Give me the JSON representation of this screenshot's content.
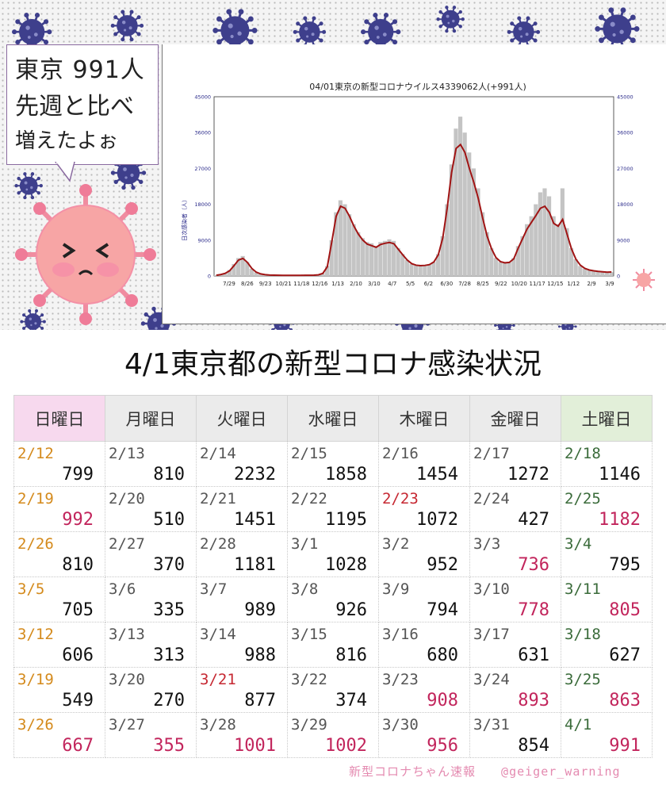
{
  "bubble": {
    "line1": "東京 991人",
    "line2": "先週と比べ",
    "line3": "増えたよぉ"
  },
  "colors": {
    "accent_red": "#c2255c",
    "sunday_date": "#d48a1c",
    "saturday_date": "#3a6b3a",
    "holiday_date": "#c62832",
    "bar": "#c4c4c4",
    "line": "#a01414",
    "virus": "#3e3f8c",
    "mascot": "#f7a5a5"
  },
  "icons": {
    "mascot": "crying-virus-mascot-icon",
    "virus": "virus-icon"
  },
  "chart_data": {
    "type": "bar",
    "title": "04/01東京の新型コロナウイルス4339062人(+991人)",
    "ylabel": "日次感染者（人）",
    "ylim": [
      0,
      45000
    ],
    "yticks": [
      "45000",
      "36000",
      "27000",
      "18000",
      "9000",
      "0"
    ],
    "x_tick_labels": [
      "7/29",
      "8/26",
      "9/23",
      "10/21",
      "11/18",
      "12/16",
      "1/13",
      "2/10",
      "3/10",
      "4/7",
      "5/5",
      "6/2",
      "6/30",
      "7/28",
      "8/25",
      "9/22",
      "10/20",
      "11/17",
      "12/15",
      "1/12",
      "2/9",
      "3/9"
    ],
    "series": [
      {
        "name": "日次感染者数",
        "kind": "bar",
        "values": [
          200,
          400,
          700,
          1500,
          3000,
          4500,
          5000,
          3500,
          1800,
          900,
          500,
          300,
          200,
          200,
          180,
          150,
          150,
          150,
          160,
          160,
          170,
          190,
          220,
          300,
          700,
          2500,
          9000,
          16000,
          19000,
          18000,
          15500,
          13000,
          11000,
          9500,
          8500,
          8200,
          7500,
          8500,
          8800,
          9200,
          8800,
          7000,
          5500,
          4000,
          3000,
          2600,
          2500,
          2600,
          2800,
          3500,
          5500,
          10000,
          18000,
          28000,
          37000,
          40000,
          36000,
          31000,
          27000,
          22000,
          16000,
          11000,
          7000,
          4500,
          3500,
          3200,
          3400,
          4500,
          7500,
          10000,
          13000,
          15000,
          18000,
          21000,
          22000,
          20000,
          15000,
          13000,
          22000,
          12000,
          7000,
          4200,
          2500,
          1800,
          1400,
          1200,
          1100,
          1000,
          900,
          950
        ]
      },
      {
        "name": "移動平均",
        "kind": "line",
        "values": [
          180,
          350,
          650,
          1300,
          2600,
          4000,
          4400,
          3400,
          1900,
          950,
          520,
          330,
          230,
          200,
          180,
          160,
          155,
          150,
          155,
          160,
          165,
          180,
          210,
          280,
          650,
          2300,
          8500,
          15000,
          17500,
          17000,
          15000,
          12500,
          10500,
          9000,
          8000,
          7600,
          7200,
          7900,
          8200,
          8400,
          8100,
          6700,
          5300,
          4000,
          3100,
          2700,
          2600,
          2650,
          2850,
          3500,
          5300,
          9500,
          17000,
          26000,
          32000,
          33000,
          31000,
          27000,
          23500,
          19500,
          14500,
          10000,
          6800,
          4600,
          3600,
          3300,
          3400,
          4300,
          7000,
          9400,
          11800,
          13500,
          15200,
          17000,
          17500,
          16000,
          13200,
          12500,
          14200,
          10500,
          6800,
          4200,
          2700,
          1900,
          1500,
          1300,
          1150,
          1050,
          950,
          990
        ]
      }
    ]
  },
  "table": {
    "title": "4/1東京都の新型コロナ感染状況",
    "headers": [
      "日曜日",
      "月曜日",
      "火曜日",
      "水曜日",
      "木曜日",
      "金曜日",
      "土曜日"
    ],
    "rows": [
      [
        {
          "date": "2/12",
          "value": "799",
          "date_style": "sun",
          "value_style": "normal"
        },
        {
          "date": "2/13",
          "value": "810",
          "date_style": "normal",
          "value_style": "normal"
        },
        {
          "date": "2/14",
          "value": "2232",
          "date_style": "normal",
          "value_style": "normal"
        },
        {
          "date": "2/15",
          "value": "1858",
          "date_style": "normal",
          "value_style": "normal"
        },
        {
          "date": "2/16",
          "value": "1454",
          "date_style": "normal",
          "value_style": "normal"
        },
        {
          "date": "2/17",
          "value": "1272",
          "date_style": "normal",
          "value_style": "normal"
        },
        {
          "date": "2/18",
          "value": "1146",
          "date_style": "sat",
          "value_style": "normal"
        }
      ],
      [
        {
          "date": "2/19",
          "value": "992",
          "date_style": "sun",
          "value_style": "red"
        },
        {
          "date": "2/20",
          "value": "510",
          "date_style": "normal",
          "value_style": "normal"
        },
        {
          "date": "2/21",
          "value": "1451",
          "date_style": "normal",
          "value_style": "normal"
        },
        {
          "date": "2/22",
          "value": "1195",
          "date_style": "normal",
          "value_style": "normal"
        },
        {
          "date": "2/23",
          "value": "1072",
          "date_style": "hol",
          "value_style": "normal"
        },
        {
          "date": "2/24",
          "value": "427",
          "date_style": "normal",
          "value_style": "normal"
        },
        {
          "date": "2/25",
          "value": "1182",
          "date_style": "sat",
          "value_style": "red"
        }
      ],
      [
        {
          "date": "2/26",
          "value": "810",
          "date_style": "sun",
          "value_style": "normal"
        },
        {
          "date": "2/27",
          "value": "370",
          "date_style": "normal",
          "value_style": "normal"
        },
        {
          "date": "2/28",
          "value": "1181",
          "date_style": "normal",
          "value_style": "normal"
        },
        {
          "date": "3/1",
          "value": "1028",
          "date_style": "normal",
          "value_style": "normal"
        },
        {
          "date": "3/2",
          "value": "952",
          "date_style": "normal",
          "value_style": "normal"
        },
        {
          "date": "3/3",
          "value": "736",
          "date_style": "normal",
          "value_style": "red"
        },
        {
          "date": "3/4",
          "value": "795",
          "date_style": "sat",
          "value_style": "normal"
        }
      ],
      [
        {
          "date": "3/5",
          "value": "705",
          "date_style": "sun",
          "value_style": "normal"
        },
        {
          "date": "3/6",
          "value": "335",
          "date_style": "normal",
          "value_style": "normal"
        },
        {
          "date": "3/7",
          "value": "989",
          "date_style": "normal",
          "value_style": "normal"
        },
        {
          "date": "3/8",
          "value": "926",
          "date_style": "normal",
          "value_style": "normal"
        },
        {
          "date": "3/9",
          "value": "794",
          "date_style": "normal",
          "value_style": "normal"
        },
        {
          "date": "3/10",
          "value": "778",
          "date_style": "normal",
          "value_style": "red"
        },
        {
          "date": "3/11",
          "value": "805",
          "date_style": "sat",
          "value_style": "red"
        }
      ],
      [
        {
          "date": "3/12",
          "value": "606",
          "date_style": "sun",
          "value_style": "normal"
        },
        {
          "date": "3/13",
          "value": "313",
          "date_style": "normal",
          "value_style": "normal"
        },
        {
          "date": "3/14",
          "value": "988",
          "date_style": "normal",
          "value_style": "normal"
        },
        {
          "date": "3/15",
          "value": "816",
          "date_style": "normal",
          "value_style": "normal"
        },
        {
          "date": "3/16",
          "value": "680",
          "date_style": "normal",
          "value_style": "normal"
        },
        {
          "date": "3/17",
          "value": "631",
          "date_style": "normal",
          "value_style": "normal"
        },
        {
          "date": "3/18",
          "value": "627",
          "date_style": "sat",
          "value_style": "normal"
        }
      ],
      [
        {
          "date": "3/19",
          "value": "549",
          "date_style": "sun",
          "value_style": "normal"
        },
        {
          "date": "3/20",
          "value": "270",
          "date_style": "normal",
          "value_style": "normal"
        },
        {
          "date": "3/21",
          "value": "877",
          "date_style": "hol",
          "value_style": "normal"
        },
        {
          "date": "3/22",
          "value": "374",
          "date_style": "normal",
          "value_style": "normal"
        },
        {
          "date": "3/23",
          "value": "908",
          "date_style": "normal",
          "value_style": "red"
        },
        {
          "date": "3/24",
          "value": "893",
          "date_style": "normal",
          "value_style": "red"
        },
        {
          "date": "3/25",
          "value": "863",
          "date_style": "sat",
          "value_style": "red"
        }
      ],
      [
        {
          "date": "3/26",
          "value": "667",
          "date_style": "sun",
          "value_style": "red"
        },
        {
          "date": "3/27",
          "value": "355",
          "date_style": "normal",
          "value_style": "red"
        },
        {
          "date": "3/28",
          "value": "1001",
          "date_style": "normal",
          "value_style": "red"
        },
        {
          "date": "3/29",
          "value": "1002",
          "date_style": "normal",
          "value_style": "red"
        },
        {
          "date": "3/30",
          "value": "956",
          "date_style": "normal",
          "value_style": "red"
        },
        {
          "date": "3/31",
          "value": "854",
          "date_style": "normal",
          "value_style": "normal"
        },
        {
          "date": "4/1",
          "value": "991",
          "date_style": "sat",
          "value_style": "red"
        }
      ]
    ]
  },
  "footer": {
    "brand": "新型コロナちゃん速報",
    "handle": "@geiger_warning"
  }
}
